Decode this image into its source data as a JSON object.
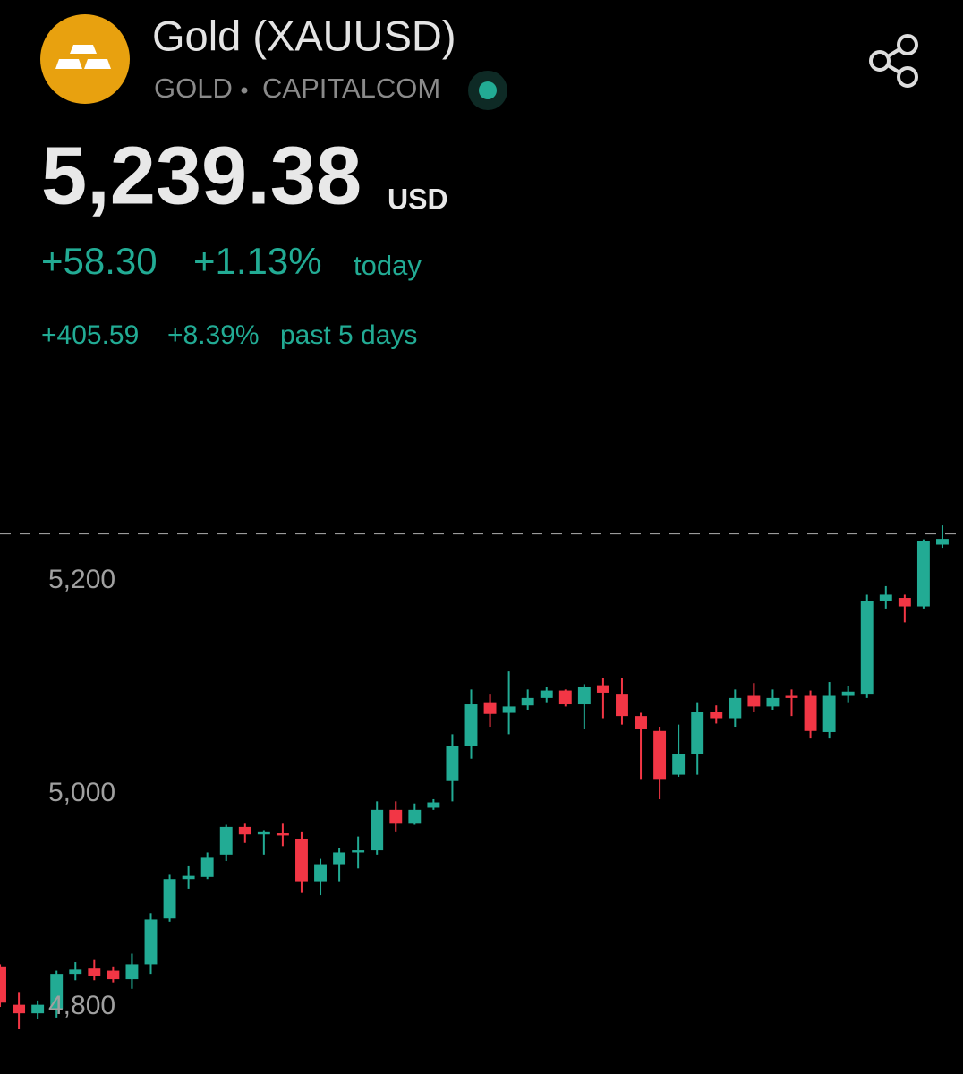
{
  "header": {
    "title": "Gold (XAUUSD)",
    "symbol": "GOLD",
    "exchange": "CAPITALCOM",
    "price": "5,239.38",
    "currency": "USD",
    "change": "+58.30",
    "change_pct": "+1.13%",
    "change_period": "today",
    "period_change": "+405.59",
    "period_change_pct": "+8.39%",
    "period": "past 5 days"
  },
  "chart_data": {
    "type": "candlestick",
    "up_color": "#22ab94",
    "down_color": "#f23645",
    "last_price_line": true,
    "ylim": [
      4737,
      5384
    ],
    "yticks": [
      {
        "value": 4800,
        "label": "4,800"
      },
      {
        "value": 5000,
        "label": "5,000"
      },
      {
        "value": 5200,
        "label": "5,200"
      }
    ],
    "open": [
      4838,
      4802,
      4794,
      4798,
      4831,
      4836,
      4834,
      4826,
      4840,
      4883,
      4920,
      4922,
      4943,
      4969,
      4962,
      4963,
      4958,
      4918,
      4934,
      4945,
      4947,
      4985,
      4972,
      4987,
      5012,
      5045,
      5086,
      5076,
      5083,
      5090,
      5097,
      5084,
      5102,
      5094,
      5073,
      5059,
      5018,
      5037,
      5077,
      5071,
      5092,
      5082,
      5092,
      5092,
      5058,
      5092,
      5094,
      5181,
      5184,
      5176,
      5234
    ],
    "high": [
      4840,
      4814,
      4806,
      4834,
      4842,
      4844,
      4838,
      4850,
      4888,
      4924,
      4932,
      4945,
      4971,
      4972,
      4966,
      4972,
      4964,
      4939,
      4949,
      4960,
      4993,
      4993,
      4991,
      4995,
      5056,
      5098,
      5094,
      5115,
      5098,
      5100,
      5098,
      5103,
      5109,
      5109,
      5076,
      5063,
      5065,
      5086,
      5083,
      5098,
      5104,
      5098,
      5098,
      5097,
      5105,
      5101,
      5187,
      5195,
      5187,
      5239,
      5252
    ],
    "low": [
      4800,
      4779,
      4789,
      4790,
      4825,
      4825,
      4823,
      4817,
      4831,
      4880,
      4911,
      4920,
      4937,
      4954,
      4943,
      4951,
      4907,
      4905,
      4918,
      4930,
      4943,
      4964,
      4971,
      4985,
      4993,
      5033,
      5063,
      5056,
      5079,
      5086,
      5082,
      5061,
      5071,
      5065,
      5014,
      4995,
      5016,
      5018,
      5066,
      5063,
      5077,
      5079,
      5073,
      5052,
      5052,
      5086,
      5090,
      5174,
      5161,
      5174,
      5231
    ],
    "close": [
      4804,
      4794,
      4802,
      4831,
      4835,
      4829,
      4826,
      4840,
      4882,
      4920,
      4923,
      4940,
      4969,
      4962,
      4964,
      4961,
      4918,
      4934,
      4945,
      4947,
      4985,
      4972,
      4985,
      4992,
      5045,
      5084,
      5075,
      5082,
      5090,
      5097,
      5084,
      5100,
      5095,
      5073,
      5061,
      5014,
      5037,
      5077,
      5071,
      5090,
      5082,
      5090,
      5090,
      5059,
      5092,
      5096,
      5181,
      5187,
      5176,
      5237,
      5239.38
    ]
  }
}
